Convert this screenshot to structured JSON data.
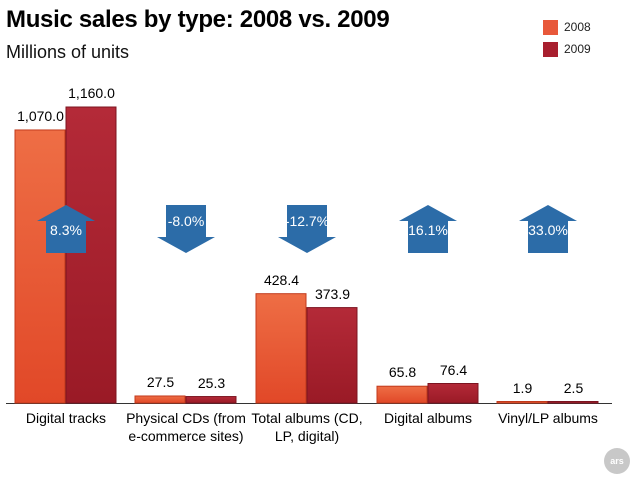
{
  "chart_data": {
    "type": "bar",
    "title": "Music sales by type: 2008 vs. 2009",
    "subtitle": "Millions of units",
    "categories": [
      "Digital tracks",
      "Physical CDs (from e-commerce sites)",
      "Total albums (CD, LP, digital)",
      "Digital albums",
      "Vinyl/LP albums"
    ],
    "series": [
      {
        "name": "2008",
        "values": [
          1070.0,
          27.5,
          428.4,
          65.8,
          1.9
        ],
        "labels": [
          "1,070.0",
          "27.5",
          "428.4",
          "65.8",
          "1.9"
        ],
        "color": "#e8583a"
      },
      {
        "name": "2009",
        "values": [
          1160.0,
          25.3,
          373.9,
          76.4,
          2.5
        ],
        "labels": [
          "1,160.0",
          "25.3",
          "373.9",
          "76.4",
          "2.5"
        ],
        "color": "#a81f2e"
      }
    ],
    "changes": [
      {
        "label": "8.3%",
        "direction": "up"
      },
      {
        "label": "-8.0%",
        "direction": "down"
      },
      {
        "label": "-12.7%",
        "direction": "down"
      },
      {
        "label": "16.1%",
        "direction": "up"
      },
      {
        "label": "33.0%",
        "direction": "up"
      }
    ],
    "arrow_color": "#2c6ca8",
    "legend_position": "top-right",
    "grid": false,
    "ylim": [
      0,
      1160
    ]
  },
  "watermark": "ars"
}
